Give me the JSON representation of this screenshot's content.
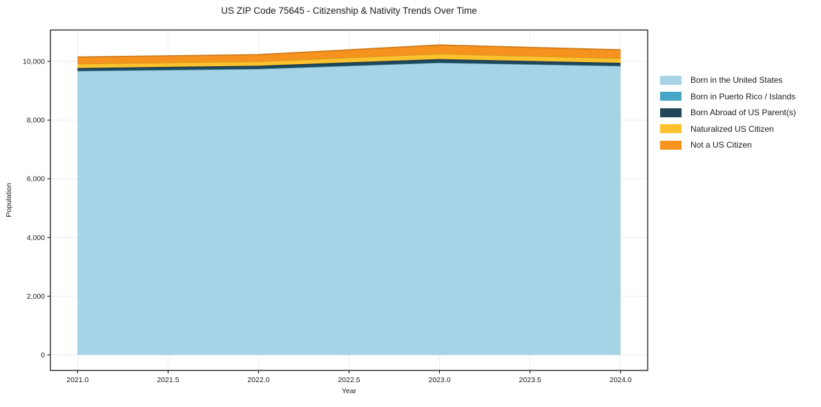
{
  "chart": {
    "title": "US ZIP Code 75645 - Citizenship & Nativity Trends Over Time",
    "xlabel": "Year",
    "ylabel": "Population"
  },
  "chart_data": {
    "type": "area",
    "stacked": true,
    "title": "US ZIP Code 75645 - Citizenship & Nativity Trends Over Time",
    "xlabel": "Year",
    "ylabel": "Population",
    "x": [
      2021,
      2022,
      2023,
      2024
    ],
    "series": [
      {
        "name": "Born in the United States",
        "color": "#a6d3e6",
        "values": [
          9680,
          9750,
          9960,
          9850
        ]
      },
      {
        "name": "Born in Puerto Rico / Islands",
        "color": "#45a5c6",
        "values": [
          0,
          0,
          0,
          0
        ]
      },
      {
        "name": "Born Abroad of US Parent(s)",
        "color": "#20465a",
        "values": [
          95,
          105,
          120,
          100
        ]
      },
      {
        "name": "Naturalized US Citizen",
        "color": "#fcc22d",
        "values": [
          140,
          140,
          175,
          155
        ]
      },
      {
        "name": "Not a US Citizen",
        "color": "#f6921e",
        "values": [
          235,
          235,
          305,
          290
        ]
      }
    ],
    "totals": [
      10150,
      10230,
      10560,
      10395
    ],
    "xlim": [
      2020.85,
      2024.15
    ],
    "ylim": [
      -530,
      11070
    ],
    "x_ticks": [
      2021.0,
      2021.5,
      2022.0,
      2022.5,
      2023.0,
      2023.5,
      2024.0
    ],
    "x_tick_labels": [
      "2021.0",
      "2021.5",
      "2022.0",
      "2022.5",
      "2023.0",
      "2023.5",
      "2024.0"
    ],
    "y_ticks": [
      0,
      2000,
      4000,
      6000,
      8000,
      10000
    ],
    "y_tick_labels": [
      "0",
      "2,000",
      "4,000",
      "6,000",
      "8,000",
      "10,000"
    ],
    "grid": true,
    "grid_color": "#ebebeb",
    "spine_color": "#000000",
    "legend_position": "outside-right"
  }
}
